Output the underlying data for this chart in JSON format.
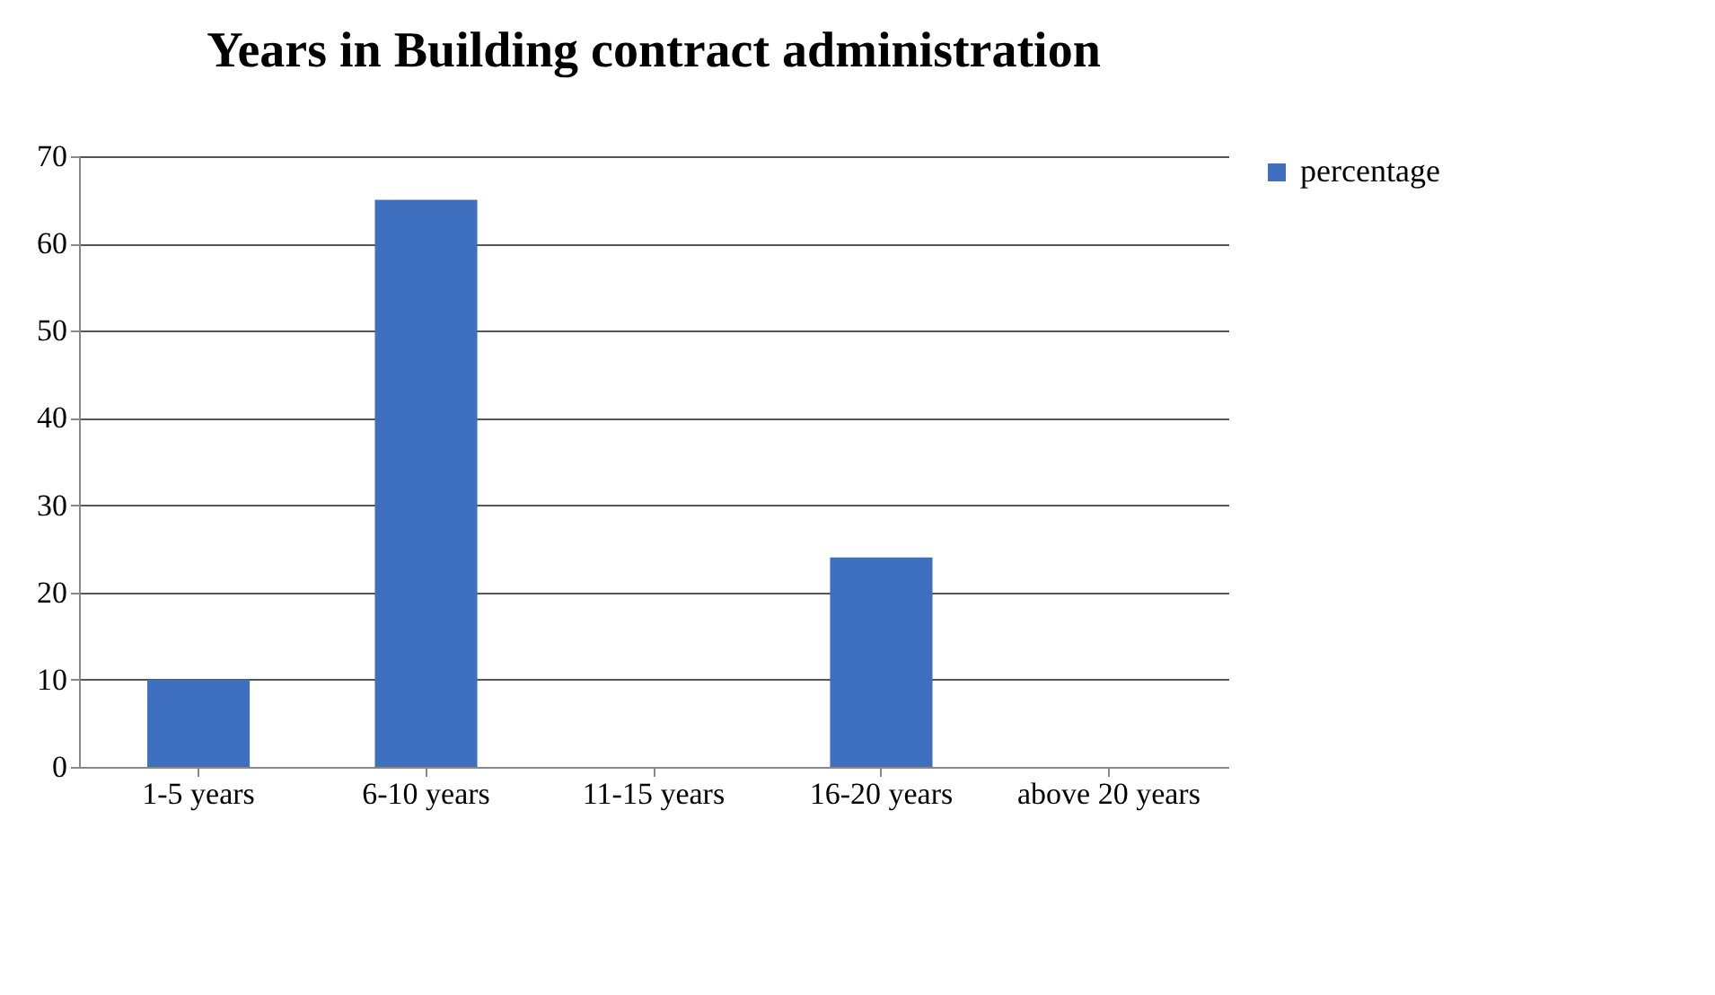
{
  "chart_data": {
    "type": "bar",
    "title": "Years in Building contract administration",
    "categories": [
      "1-5 years",
      "6-10 years",
      "11-15 years",
      "16-20 years",
      "above 20 years"
    ],
    "series": [
      {
        "name": "percentage",
        "color": "#3f6fbf",
        "values": [
          10,
          65,
          0,
          24,
          0
        ]
      }
    ],
    "ylim": [
      0,
      70
    ],
    "yticks": [
      0,
      10,
      20,
      30,
      40,
      50,
      60,
      70
    ],
    "grid": "y",
    "legend": "right"
  }
}
